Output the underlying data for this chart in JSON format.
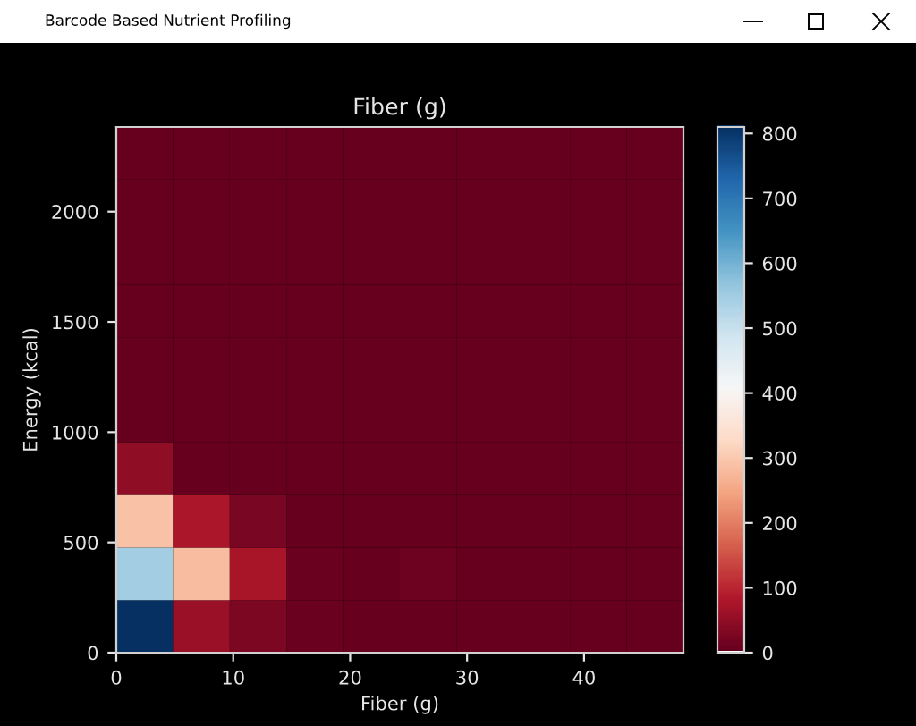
{
  "chart_data": {
    "type": "heatmap",
    "title": "Fiber (g)",
    "xlabel": "Fiber (g)",
    "ylabel": "Energy (kcal)",
    "xlim": [
      0,
      48.5
    ],
    "ylim": [
      0,
      2384
    ],
    "xticks": [
      0,
      10,
      20,
      30,
      40
    ],
    "yticks": [
      0,
      500,
      1000,
      1500,
      2000
    ],
    "clim": [
      0,
      810
    ],
    "cticks": [
      0,
      100,
      200,
      300,
      400,
      500,
      600,
      700,
      800
    ],
    "cells": [
      [
        0,
        0,
        0,
        0,
        0,
        0,
        0,
        0,
        0,
        0
      ],
      [
        0,
        0,
        0,
        0,
        0,
        0,
        0,
        0,
        0,
        0
      ],
      [
        0,
        0,
        0,
        0,
        0,
        0,
        0,
        0,
        0,
        0
      ],
      [
        0,
        0,
        0,
        0,
        0,
        0,
        0,
        0,
        0,
        0
      ],
      [
        0,
        0,
        0,
        0,
        0,
        0,
        0,
        0,
        0,
        0
      ],
      [
        0,
        0,
        0,
        0,
        0,
        0,
        0,
        0,
        0,
        0
      ],
      [
        45,
        2,
        1,
        0,
        0,
        0,
        0,
        0,
        0,
        0
      ],
      [
        285,
        75,
        22,
        2,
        1,
        1,
        1,
        0,
        0,
        0
      ],
      [
        545,
        280,
        70,
        5,
        3,
        8,
        1,
        1,
        0,
        0
      ],
      [
        810,
        55,
        25,
        4,
        2,
        2,
        2,
        1,
        0,
        0
      ]
    ],
    "annotations": [
      "Barcode Based Nutrient Profiling"
    ]
  }
}
